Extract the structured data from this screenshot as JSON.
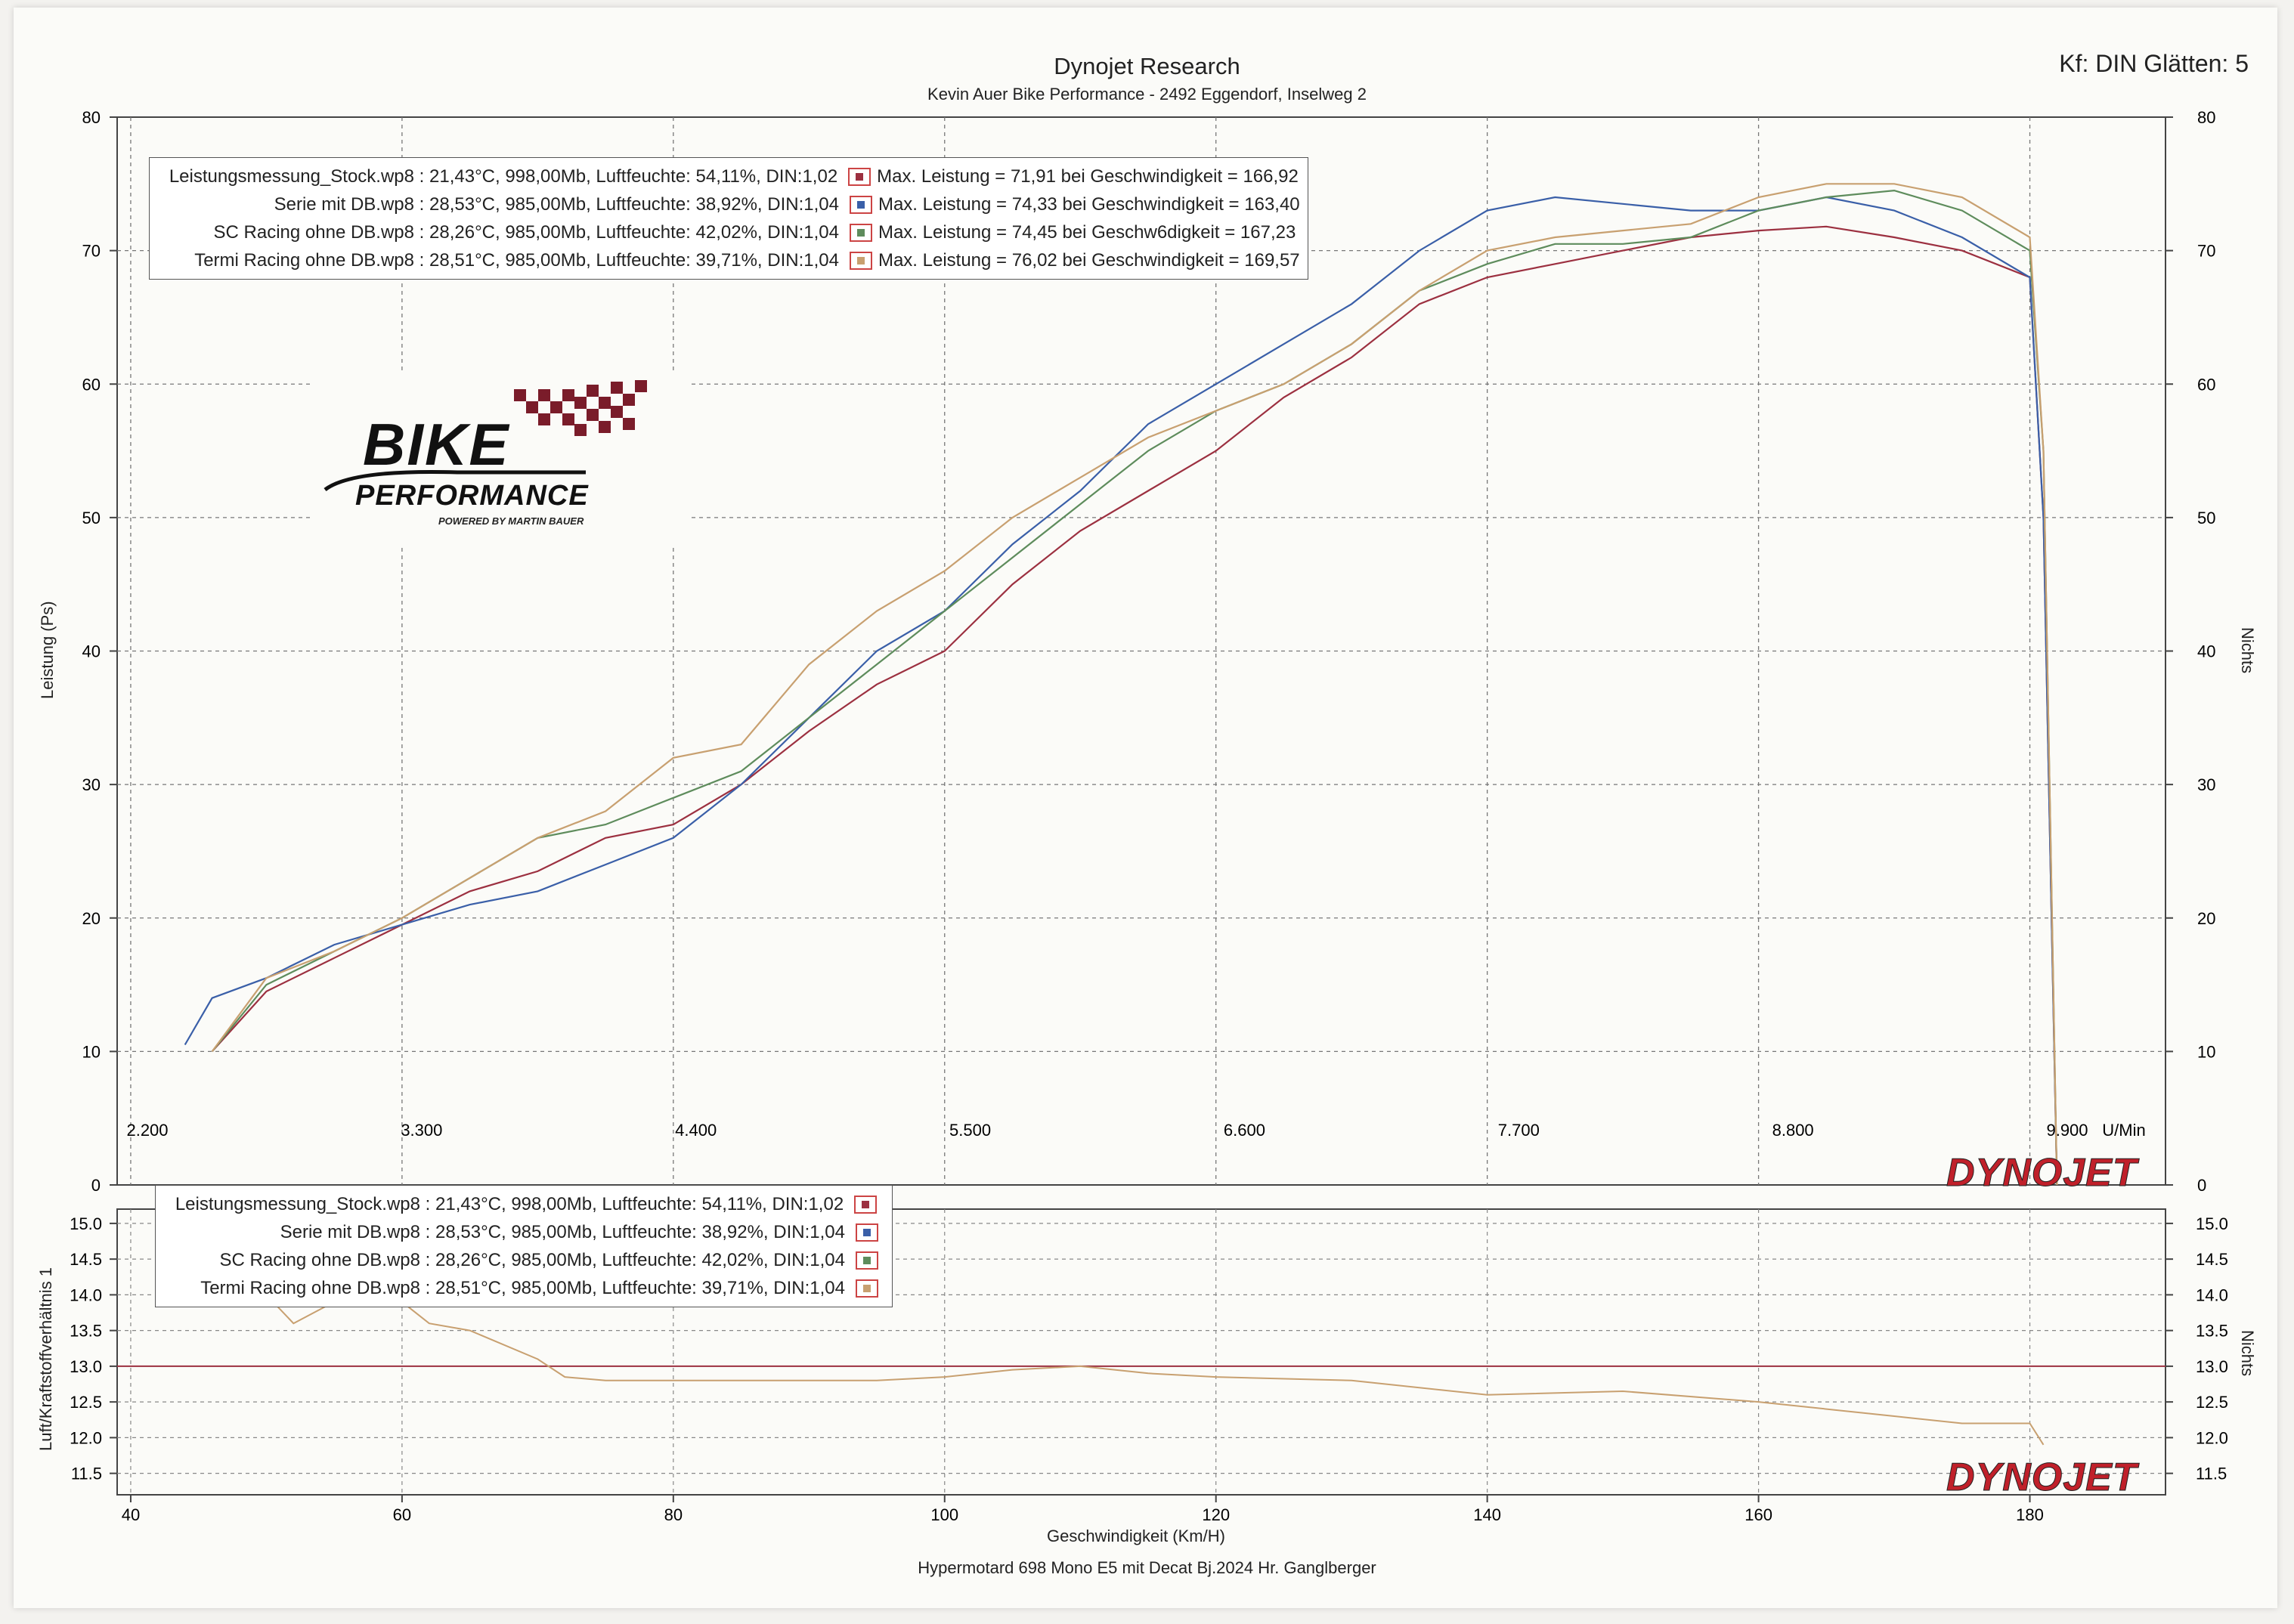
{
  "header": {
    "title": "Dynojet Research",
    "subtitle": "Kevin Auer Bike Performance - 2492 Eggendorf, Inselweg 2",
    "smoothing": "Kf: DIN Glätten: 5"
  },
  "logo": {
    "line1": "BIKE",
    "line2": "PERFORMANCE",
    "line3": "POWERED BY MARTIN BAUER"
  },
  "brand": "DYNOJET",
  "footer": "Hypermotard 698 Mono E5 mit Decat Bj.2024   Hr. Ganglberger",
  "colors": {
    "stock": "#9c3040",
    "serie": "#3a5fa8",
    "sc": "#5e8c5c",
    "termi": "#c8a070"
  },
  "legend_top": [
    {
      "file": "Leistungsmessung_Stock.wp8",
      "info": ": 21,43°C, 998,00Mb, Luftfeuchte: 54,11%, DIN:1,02",
      "max": "Max. Leistung = 71,91 bei Geschwindigkeit = 166,92"
    },
    {
      "file": "Serie mit DB.wp8",
      "info": ": 28,53°C, 985,00Mb, Luftfeuchte: 38,92%, DIN:1,04",
      "max": "Max. Leistung = 74,33 bei Geschwindigkeit = 163,40"
    },
    {
      "file": "SC Racing ohne DB.wp8",
      "info": ": 28,26°C, 985,00Mb, Luftfeuchte: 42,02%, DIN:1,04",
      "max": "Max. Leistung = 74,45 bei Geschw6digkeit = 167,23"
    },
    {
      "file": "Termi Racing ohne DB.wp8",
      "info": ": 28,51°C, 985,00Mb, Luftfeuchte: 39,71%, DIN:1,04",
      "max": "Max. Leistung = 76,02 bei Geschwindigkeit = 169,57"
    }
  ],
  "legend_bottom": [
    {
      "file": "Leistungsmessung_Stock.wp8",
      "info": ": 21,43°C, 998,00Mb, Luftfeuchte: 54,11%, DIN:1,02"
    },
    {
      "file": "Serie mit DB.wp8",
      "info": ": 28,53°C, 985,00Mb, Luftfeuchte: 38,92%, DIN:1,04"
    },
    {
      "file": "SC Racing ohne DB.wp8",
      "info": ": 28,26°C, 985,00Mb, Luftfeuchte: 42,02%, DIN:1,04"
    },
    {
      "file": "Termi Racing ohne DB.wp8",
      "info": ": 28,51°C, 985,00Mb, Luftfeuchte: 39,71%, DIN:1,04"
    }
  ],
  "chart_data": [
    {
      "type": "line",
      "ylabel": "Leistung (Ps)",
      "y2label": "Nichts",
      "xlim": [
        39,
        190
      ],
      "ylim": [
        0,
        80
      ],
      "y_ticks": [
        0,
        10,
        20,
        30,
        40,
        50,
        60,
        70,
        80
      ],
      "y2_ticks": [
        0,
        10,
        20,
        30,
        40,
        50,
        60,
        70,
        80
      ],
      "rpm_ticks": [
        "2.200",
        "3.300",
        "4.400",
        "5.500",
        "6.600",
        "7.700",
        "8.800",
        "9.900"
      ],
      "rpm_unit": "U/Min",
      "grid": true,
      "series": [
        {
          "name": "Leistungsmessung_Stock.wp8",
          "color_key": "stock",
          "x": [
            46,
            50,
            55,
            60,
            65,
            70,
            75,
            80,
            85,
            90,
            95,
            100,
            105,
            110,
            115,
            120,
            125,
            130,
            135,
            140,
            145,
            150,
            155,
            160,
            165,
            170,
            175,
            180,
            181,
            182
          ],
          "y": [
            10,
            14.5,
            17,
            19.5,
            22,
            23.5,
            26,
            27,
            30,
            34,
            37.5,
            40,
            45,
            49,
            52,
            55,
            59,
            62,
            66,
            68,
            69,
            70,
            71,
            71.5,
            71.8,
            71,
            70,
            68,
            50,
            0
          ]
        },
        {
          "name": "Serie mit DB.wp8",
          "color_key": "serie",
          "x": [
            44,
            46,
            50,
            55,
            60,
            65,
            70,
            75,
            80,
            85,
            90,
            95,
            100,
            105,
            110,
            115,
            120,
            125,
            130,
            135,
            140,
            145,
            150,
            155,
            160,
            165,
            170,
            175,
            180,
            181,
            182
          ],
          "y": [
            10.5,
            14,
            15.5,
            18,
            19.5,
            21,
            22,
            24,
            26,
            30,
            35,
            40,
            43,
            48,
            52,
            57,
            60,
            63,
            66,
            70,
            73,
            74,
            73.5,
            73,
            73,
            74,
            73,
            71,
            68,
            50,
            0
          ]
        },
        {
          "name": "SC Racing ohne DB.wp8",
          "color_key": "sc",
          "x": [
            46,
            50,
            55,
            60,
            65,
            70,
            75,
            80,
            85,
            90,
            95,
            100,
            105,
            110,
            115,
            120,
            125,
            130,
            135,
            140,
            145,
            150,
            155,
            160,
            165,
            170,
            175,
            180,
            181,
            182
          ],
          "y": [
            10,
            15,
            17.5,
            20,
            23,
            26,
            27,
            29,
            31,
            35,
            39,
            43,
            47,
            51,
            55,
            58,
            60,
            63,
            67,
            69,
            70.5,
            70.5,
            71,
            73,
            74,
            74.5,
            73,
            70,
            55,
            0
          ]
        },
        {
          "name": "Termi Racing ohne DB.wp8",
          "color_key": "termi",
          "x": [
            46,
            50,
            55,
            60,
            65,
            70,
            75,
            80,
            85,
            90,
            95,
            100,
            105,
            110,
            115,
            120,
            125,
            130,
            135,
            140,
            145,
            150,
            155,
            160,
            165,
            170,
            175,
            180,
            181,
            182
          ],
          "y": [
            10,
            15.5,
            17.5,
            20,
            23,
            26,
            28,
            32,
            33,
            39,
            43,
            46,
            50,
            53,
            56,
            58,
            60,
            63,
            67,
            70,
            71,
            71.5,
            72,
            74,
            75,
            75,
            74,
            71,
            55,
            0
          ]
        }
      ]
    },
    {
      "type": "line",
      "xlabel": "Geschwindigkeit (Km/H)",
      "ylabel": "Luft/Kraftstoffverhältnis 1",
      "y2label": "Nichts",
      "xlim": [
        39,
        190
      ],
      "ylim": [
        11.2,
        15.2
      ],
      "x_ticks": [
        40,
        60,
        80,
        100,
        120,
        140,
        160,
        180
      ],
      "y_ticks": [
        11.5,
        12.0,
        12.5,
        13.0,
        13.5,
        14.0,
        14.5,
        15.0
      ],
      "grid": true,
      "series": [
        {
          "name": "Leistungsmessung_Stock.wp8",
          "color_key": "stock",
          "x": [
            39,
            190
          ],
          "y": [
            13.0,
            13.0
          ]
        },
        {
          "name": "Termi Racing ohne DB.wp8",
          "color_key": "termi",
          "x": [
            50,
            52,
            55,
            60,
            62,
            65,
            70,
            72,
            75,
            80,
            85,
            90,
            95,
            100,
            105,
            110,
            115,
            120,
            130,
            140,
            150,
            160,
            170,
            175,
            180,
            181
          ],
          "y": [
            14.0,
            13.6,
            13.9,
            13.9,
            13.6,
            13.5,
            13.1,
            12.85,
            12.8,
            12.8,
            12.8,
            12.8,
            12.8,
            12.85,
            12.95,
            13.0,
            12.9,
            12.85,
            12.8,
            12.6,
            12.65,
            12.5,
            12.3,
            12.2,
            12.2,
            11.9
          ]
        }
      ]
    }
  ]
}
